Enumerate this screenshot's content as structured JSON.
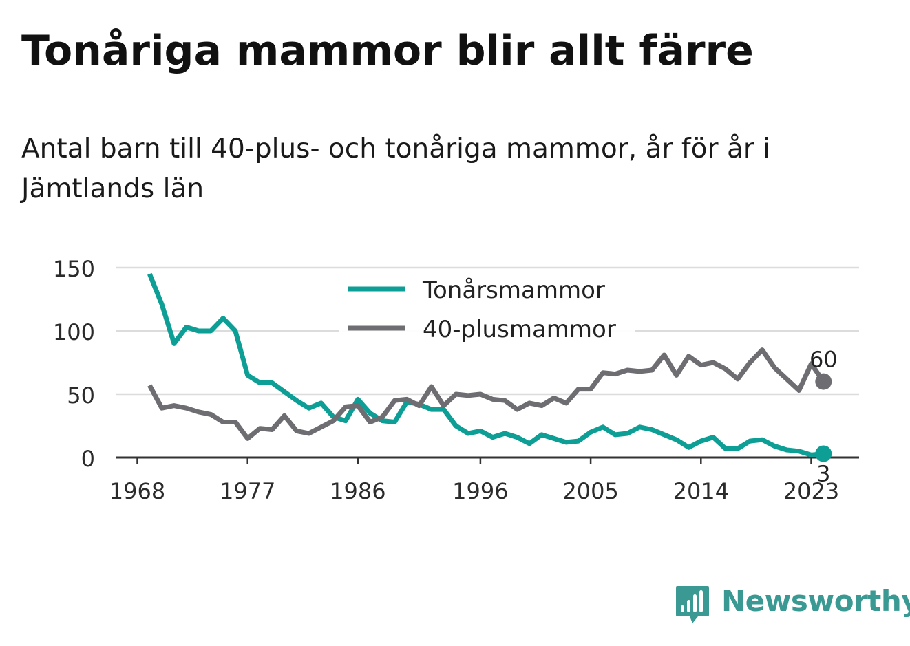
{
  "title": "Tonåriga mammor blir allt färre",
  "subtitle": "Antal barn till 40-plus- och tonåriga mammor, år för år i Jämtlands län",
  "brand": {
    "name": "Newsworthy",
    "icon": "newsworthy-bar-chart-icon",
    "color": "#3a9a93"
  },
  "chart_data": {
    "type": "line",
    "ylim": [
      0,
      150
    ],
    "xlim": [
      1968,
      2024
    ],
    "yticks": [
      0,
      50,
      100,
      150
    ],
    "xticks": [
      "1968",
      "1977",
      "1986",
      "1996",
      "2005",
      "2014",
      "2023"
    ],
    "grid": true,
    "legend_position": "top-center",
    "x": [
      1969,
      1970,
      1971,
      1972,
      1973,
      1974,
      1975,
      1976,
      1977,
      1978,
      1979,
      1980,
      1981,
      1982,
      1983,
      1984,
      1985,
      1986,
      1987,
      1988,
      1989,
      1990,
      1991,
      1992,
      1993,
      1994,
      1995,
      1996,
      1997,
      1998,
      1999,
      2000,
      2001,
      2002,
      2003,
      2004,
      2005,
      2006,
      2007,
      2008,
      2009,
      2010,
      2011,
      2012,
      2013,
      2014,
      2015,
      2016,
      2017,
      2018,
      2019,
      2020,
      2021,
      2022,
      2023,
      2024
    ],
    "series": [
      {
        "name": "Tonårsmammor",
        "color": "#0d9e96",
        "values": [
          145,
          121,
          90,
          103,
          100,
          100,
          110,
          100,
          65,
          59,
          59,
          52,
          45,
          39,
          43,
          32,
          29,
          46,
          35,
          29,
          28,
          44,
          42,
          38,
          38,
          25,
          19,
          21,
          16,
          19,
          16,
          11,
          18,
          15,
          12,
          13,
          20,
          24,
          18,
          19,
          24,
          22,
          18,
          14,
          8,
          13,
          16,
          7,
          7,
          13,
          14,
          9,
          6,
          5,
          2,
          3
        ],
        "end_label": "3"
      },
      {
        "name": "40-plusmammor",
        "color": "#6d6d72",
        "values": [
          57,
          39,
          41,
          39,
          36,
          34,
          28,
          28,
          15,
          23,
          22,
          33,
          21,
          19,
          24,
          29,
          40,
          41,
          28,
          32,
          45,
          46,
          41,
          56,
          41,
          50,
          49,
          50,
          46,
          45,
          38,
          43,
          41,
          47,
          43,
          54,
          54,
          67,
          66,
          69,
          68,
          69,
          81,
          65,
          80,
          73,
          75,
          70,
          62,
          75,
          85,
          71,
          62,
          53,
          74,
          60
        ],
        "end_label": "60"
      }
    ]
  }
}
